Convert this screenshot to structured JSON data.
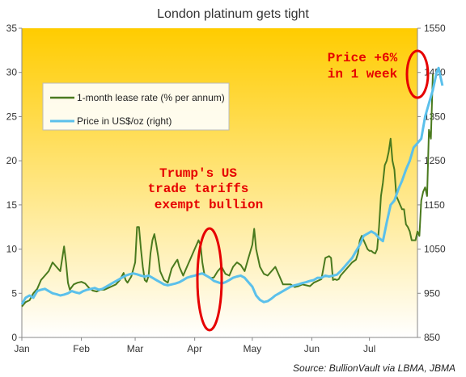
{
  "chart_data": {
    "type": "line",
    "title": "London platinum gets tight",
    "source": "Source: BullionVault via LBMA, JBMA",
    "x_tick_labels": [
      "Jan",
      "Feb",
      "Mar",
      "Apr",
      "May",
      "Jun",
      "Jul"
    ],
    "y_left": {
      "min": 0,
      "max": 35,
      "ticks": [
        0,
        5,
        10,
        15,
        20,
        25,
        30,
        35
      ]
    },
    "y_right": {
      "min": 850,
      "max": 1550,
      "ticks": [
        850,
        950,
        1050,
        1150,
        1250,
        1350,
        1450,
        1550
      ]
    },
    "x_domain_days": [
      0,
      206
    ],
    "grid": false,
    "background": {
      "top": "#ffcc00",
      "bottom": "#ffffff"
    },
    "legend": {
      "position": "upper-left"
    },
    "series": [
      {
        "name": "1-month lease rate (% per annum)",
        "axis": "left",
        "color": "#4a7a1e",
        "points": [
          [
            0,
            3.5
          ],
          [
            2,
            4.0
          ],
          [
            4,
            4.2
          ],
          [
            6,
            5.0
          ],
          [
            8,
            5.5
          ],
          [
            10,
            6.5
          ],
          [
            12,
            7.0
          ],
          [
            14,
            7.5
          ],
          [
            16,
            8.5
          ],
          [
            18,
            8.0
          ],
          [
            20,
            7.5
          ],
          [
            22,
            10.3
          ],
          [
            23,
            8.5
          ],
          [
            24,
            6.2
          ],
          [
            25,
            5.4
          ],
          [
            27,
            6.0
          ],
          [
            29,
            6.2
          ],
          [
            31,
            6.3
          ],
          [
            33,
            6.1
          ],
          [
            35,
            5.6
          ],
          [
            37,
            5.3
          ],
          [
            39,
            5.2
          ],
          [
            41,
            5.4
          ],
          [
            43,
            5.4
          ],
          [
            45,
            5.6
          ],
          [
            47,
            5.8
          ],
          [
            49,
            6.0
          ],
          [
            51,
            6.5
          ],
          [
            53,
            7.3
          ],
          [
            54,
            6.5
          ],
          [
            55,
            6.2
          ],
          [
            57,
            6.9
          ],
          [
            59,
            8.5
          ],
          [
            60,
            12.5
          ],
          [
            61,
            12.5
          ],
          [
            62,
            10.0
          ],
          [
            63,
            8.0
          ],
          [
            64,
            6.5
          ],
          [
            65,
            6.3
          ],
          [
            66,
            7.0
          ],
          [
            67,
            9.5
          ],
          [
            68,
            11.0
          ],
          [
            69,
            11.7
          ],
          [
            70,
            10.5
          ],
          [
            71,
            9.2
          ],
          [
            72,
            7.5
          ],
          [
            74,
            6.5
          ],
          [
            76,
            6.2
          ],
          [
            78,
            7.8
          ],
          [
            80,
            8.5
          ],
          [
            81,
            8.8
          ],
          [
            82,
            8.0
          ],
          [
            84,
            7.0
          ],
          [
            86,
            8.0
          ],
          [
            88,
            9.0
          ],
          [
            90,
            10.0
          ],
          [
            92,
            11.0
          ],
          [
            93,
            10.5
          ],
          [
            94,
            8.5
          ],
          [
            95,
            7.2
          ],
          [
            96,
            7.0
          ],
          [
            98,
            6.7
          ],
          [
            100,
            6.8
          ],
          [
            102,
            7.5
          ],
          [
            104,
            8.0
          ],
          [
            106,
            7.2
          ],
          [
            108,
            7.0
          ],
          [
            110,
            8.0
          ],
          [
            112,
            8.5
          ],
          [
            114,
            8.2
          ],
          [
            116,
            7.5
          ],
          [
            118,
            9.0
          ],
          [
            120,
            10.5
          ],
          [
            121,
            12.3
          ],
          [
            122,
            10.0
          ],
          [
            124,
            8.0
          ],
          [
            126,
            7.2
          ],
          [
            128,
            7.0
          ],
          [
            130,
            7.5
          ],
          [
            132,
            8.0
          ],
          [
            134,
            7.0
          ],
          [
            136,
            6.0
          ],
          [
            138,
            6.0
          ],
          [
            140,
            6.0
          ],
          [
            142,
            5.7
          ],
          [
            144,
            5.8
          ],
          [
            146,
            6.0
          ],
          [
            148,
            5.9
          ],
          [
            150,
            5.8
          ],
          [
            152,
            6.2
          ],
          [
            154,
            6.4
          ],
          [
            156,
            6.6
          ],
          [
            158,
            9.0
          ],
          [
            160,
            9.2
          ],
          [
            161,
            9.0
          ],
          [
            162,
            6.5
          ],
          [
            163,
            6.6
          ],
          [
            164,
            6.5
          ],
          [
            165,
            6.6
          ],
          [
            166,
            7.0
          ],
          [
            168,
            7.5
          ],
          [
            170,
            8.0
          ],
          [
            172,
            8.5
          ],
          [
            174,
            8.8
          ],
          [
            175,
            9.5
          ],
          [
            176,
            11.0
          ],
          [
            177,
            11.5
          ],
          [
            178,
            11.0
          ],
          [
            179,
            10.5
          ],
          [
            180,
            10.0
          ],
          [
            181,
            9.8
          ],
          [
            182,
            9.8
          ],
          [
            183,
            9.6
          ],
          [
            184,
            9.5
          ],
          [
            185,
            10.0
          ],
          [
            186,
            12.5
          ],
          [
            187,
            16.0
          ],
          [
            188,
            17.5
          ],
          [
            189,
            19.5
          ],
          [
            190,
            20.0
          ],
          [
            191,
            21.0
          ],
          [
            192,
            22.5
          ],
          [
            193,
            20.0
          ],
          [
            194,
            19.0
          ],
          [
            195,
            16.0
          ],
          [
            196,
            15.5
          ],
          [
            197,
            15.0
          ],
          [
            198,
            14.5
          ],
          [
            199,
            14.5
          ],
          [
            200,
            12.8
          ],
          [
            201,
            12.5
          ],
          [
            202,
            12.0
          ],
          [
            203,
            11.0
          ],
          [
            204,
            11.0
          ],
          [
            205,
            11.0
          ],
          [
            206,
            12.0
          ],
          [
            207,
            11.5
          ],
          [
            208,
            15.5
          ],
          [
            209,
            16.5
          ],
          [
            210,
            17.0
          ],
          [
            211,
            16.0
          ],
          [
            212,
            23.5
          ],
          [
            213,
            22.5
          ],
          [
            214,
            29.8
          ]
        ]
      },
      {
        "name": "Price in US$/oz (right)",
        "axis": "right",
        "color": "#5bc0eb",
        "points": [
          [
            0,
            925
          ],
          [
            2,
            940
          ],
          [
            4,
            945
          ],
          [
            6,
            940
          ],
          [
            8,
            955
          ],
          [
            10,
            958
          ],
          [
            12,
            960
          ],
          [
            14,
            955
          ],
          [
            16,
            950
          ],
          [
            18,
            948
          ],
          [
            20,
            945
          ],
          [
            22,
            947
          ],
          [
            24,
            950
          ],
          [
            26,
            955
          ],
          [
            28,
            952
          ],
          [
            30,
            950
          ],
          [
            32,
            955
          ],
          [
            34,
            958
          ],
          [
            36,
            960
          ],
          [
            38,
            962
          ],
          [
            40,
            958
          ],
          [
            42,
            960
          ],
          [
            44,
            965
          ],
          [
            46,
            970
          ],
          [
            48,
            975
          ],
          [
            50,
            980
          ],
          [
            52,
            985
          ],
          [
            54,
            990
          ],
          [
            56,
            993
          ],
          [
            58,
            995
          ],
          [
            60,
            993
          ],
          [
            62,
            990
          ],
          [
            64,
            988
          ],
          [
            66,
            990
          ],
          [
            68,
            985
          ],
          [
            70,
            980
          ],
          [
            72,
            975
          ],
          [
            74,
            970
          ],
          [
            76,
            968
          ],
          [
            78,
            970
          ],
          [
            80,
            972
          ],
          [
            82,
            975
          ],
          [
            84,
            980
          ],
          [
            86,
            985
          ],
          [
            88,
            988
          ],
          [
            90,
            990
          ],
          [
            92,
            993
          ],
          [
            94,
            995
          ],
          [
            96,
            990
          ],
          [
            98,
            985
          ],
          [
            100,
            978
          ],
          [
            102,
            975
          ],
          [
            104,
            972
          ],
          [
            106,
            975
          ],
          [
            108,
            980
          ],
          [
            110,
            985
          ],
          [
            112,
            988
          ],
          [
            114,
            990
          ],
          [
            116,
            985
          ],
          [
            118,
            975
          ],
          [
            120,
            965
          ],
          [
            122,
            945
          ],
          [
            124,
            935
          ],
          [
            126,
            930
          ],
          [
            128,
            932
          ],
          [
            130,
            938
          ],
          [
            132,
            945
          ],
          [
            134,
            950
          ],
          [
            136,
            955
          ],
          [
            138,
            960
          ],
          [
            140,
            965
          ],
          [
            142,
            968
          ],
          [
            144,
            970
          ],
          [
            146,
            973
          ],
          [
            148,
            975
          ],
          [
            150,
            978
          ],
          [
            152,
            980
          ],
          [
            154,
            985
          ],
          [
            156,
            985
          ],
          [
            158,
            990
          ],
          [
            160,
            988
          ],
          [
            162,
            990
          ],
          [
            164,
            992
          ],
          [
            166,
            1000
          ],
          [
            168,
            1010
          ],
          [
            170,
            1020
          ],
          [
            172,
            1030
          ],
          [
            174,
            1045
          ],
          [
            176,
            1060
          ],
          [
            178,
            1080
          ],
          [
            180,
            1085
          ],
          [
            182,
            1090
          ],
          [
            184,
            1085
          ],
          [
            186,
            1075
          ],
          [
            188,
            1068
          ],
          [
            190,
            1110
          ],
          [
            192,
            1150
          ],
          [
            194,
            1160
          ],
          [
            196,
            1185
          ],
          [
            198,
            1205
          ],
          [
            200,
            1230
          ],
          [
            202,
            1250
          ],
          [
            204,
            1280
          ],
          [
            206,
            1290
          ],
          [
            208,
            1300
          ],
          [
            210,
            1350
          ],
          [
            212,
            1380
          ],
          [
            214,
            1410
          ],
          [
            216,
            1450
          ],
          [
            217,
            1460
          ],
          [
            218,
            1440
          ],
          [
            219,
            1420
          ]
        ]
      }
    ],
    "annotations": [
      {
        "text_lines": [
          "Trump's US",
          "trade tariffs",
          "exempt bullion"
        ],
        "color": "#e60000"
      },
      {
        "text_lines": [
          "Price +6%",
          "in 1 week"
        ],
        "color": "#e60000"
      }
    ]
  }
}
